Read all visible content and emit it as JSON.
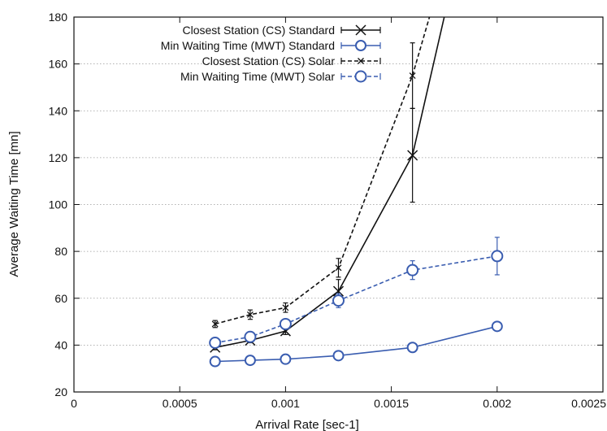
{
  "chart_data": {
    "type": "line",
    "title": "",
    "xlabel": "Arrival Rate [sec-1]",
    "ylabel": "Average Waiting Time [mn]",
    "xlim": [
      0,
      0.0025
    ],
    "ylim": [
      20,
      180
    ],
    "xticks": [
      0,
      0.0005,
      0.001,
      0.0015,
      0.002,
      0.0025
    ],
    "xtick_labels": [
      "0",
      "0.0005",
      "0.001",
      "0.0015",
      "0.002",
      "0.0025"
    ],
    "yticks": [
      20,
      40,
      60,
      80,
      100,
      120,
      140,
      160,
      180
    ],
    "ytick_labels": [
      "20",
      "40",
      "60",
      "80",
      "100",
      "120",
      "140",
      "160",
      "180"
    ],
    "grid": "horizontal dotted",
    "legend_position": "top-left",
    "series": [
      {
        "name": "Closest Station (CS) Standard",
        "color": "#111111",
        "dashed": false,
        "marker": "x-large",
        "x": [
          0.000667,
          0.000833,
          0.001,
          0.00125,
          0.0016,
          0.00175
        ],
        "y": [
          39,
          42,
          46,
          63,
          121,
          180
        ],
        "err": [
          1,
          1,
          1.5,
          5,
          20,
          0
        ]
      },
      {
        "name": "Min Waiting Time (MWT) Standard",
        "color": "#3a5db0",
        "dashed": false,
        "marker": "circle-large",
        "x": [
          0.000667,
          0.000833,
          0.001,
          0.00125,
          0.0016,
          0.002
        ],
        "y": [
          33,
          33.5,
          34,
          35.5,
          39,
          48
        ],
        "err": [
          0.5,
          0.5,
          0.5,
          0.5,
          0.8,
          1
        ]
      },
      {
        "name": "Closest Station (CS) Solar",
        "color": "#111111",
        "dashed": true,
        "marker": "x-small",
        "x": [
          0.000667,
          0.000833,
          0.001,
          0.00125,
          0.0016,
          0.00168
        ],
        "y": [
          49,
          53,
          56,
          73,
          155,
          180
        ],
        "err": [
          1.5,
          2,
          2,
          4,
          14,
          0
        ]
      },
      {
        "name": "Min Waiting Time (MWT) Solar",
        "color": "#3a5db0",
        "dashed": true,
        "marker": "circle-small",
        "x": [
          0.000667,
          0.000833,
          0.001,
          0.00125,
          0.0016,
          0.002
        ],
        "y": [
          41,
          43.5,
          49,
          59,
          72,
          78
        ],
        "err": [
          1,
          1,
          2,
          3,
          4,
          8
        ]
      }
    ]
  }
}
